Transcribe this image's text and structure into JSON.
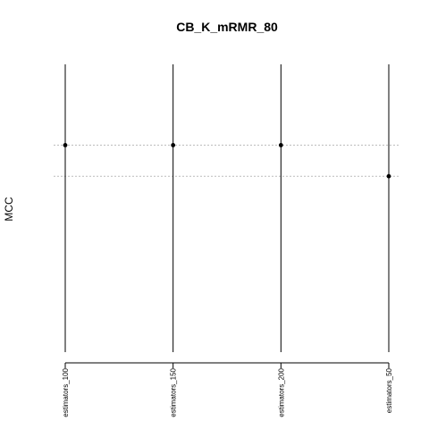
{
  "chart_data": {
    "type": "scatter",
    "title": "CB_K_mRMR_80",
    "xlabel": "",
    "ylabel": "MCC",
    "categories": [
      "estimators_100",
      "estimators_150",
      "estimators_200",
      "estimators_50"
    ],
    "series": [
      {
        "values": [
          0.6,
          0.6,
          0.6,
          0.55
        ]
      }
    ],
    "ylim": [
      0.25,
      0.75
    ],
    "reference_lines": [
      0.6,
      0.55
    ],
    "grid": false,
    "colors": {
      "point": "#000000",
      "vline": "#000000",
      "hline": "#bbbbbb",
      "axis": "#000000"
    }
  }
}
